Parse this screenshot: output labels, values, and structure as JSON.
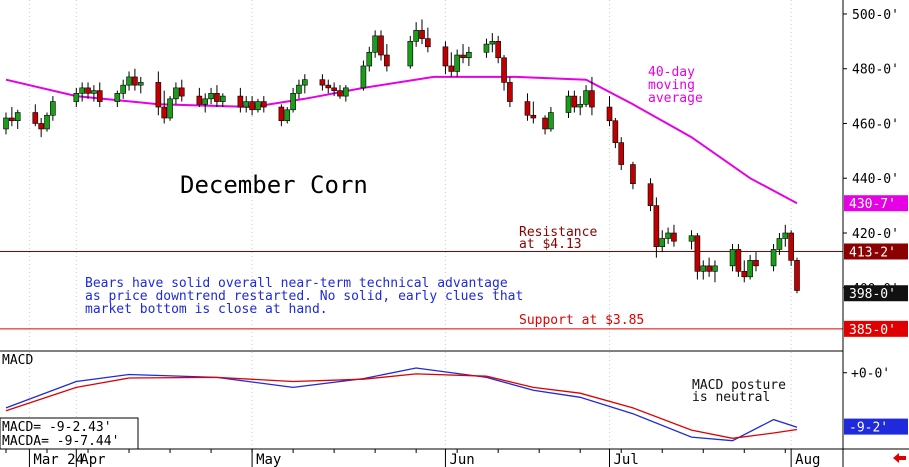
{
  "chart_data": [
    {
      "type": "candlestick",
      "title": "December Corn",
      "y_unit_format": "cents-eighths",
      "ylim": [
        378,
        504
      ],
      "x_date_range": [
        "2024-03-20",
        "2024-08-02"
      ],
      "y_ticks": [
        {
          "value": 500,
          "label": "500-0'"
        },
        {
          "value": 480,
          "label": "480-0'"
        },
        {
          "value": 460,
          "label": "460-0'"
        },
        {
          "value": 440,
          "label": "440-0'"
        },
        {
          "value": 420,
          "label": "420-0'"
        },
        {
          "value": 400,
          "label": "400-0'"
        }
      ],
      "x_ticks": [
        {
          "date": "2024-03-24",
          "label": "Mar 24"
        },
        {
          "date": "2024-04-01",
          "label": "Apr"
        },
        {
          "date": "2024-05-01",
          "label": "May"
        },
        {
          "date": "2024-06-03",
          "label": "Jun"
        },
        {
          "date": "2024-07-01",
          "label": "Jul"
        },
        {
          "date": "2024-08-01",
          "label": "Aug"
        }
      ],
      "candles_note": "open, high, low, close in cents/bushel (estimated)",
      "candles": [
        {
          "date": "2024-03-20",
          "o": 458,
          "h": 464,
          "l": 456,
          "c": 462
        },
        {
          "date": "2024-03-21",
          "o": 462,
          "h": 466,
          "l": 459,
          "c": 461
        },
        {
          "date": "2024-03-22",
          "o": 461,
          "h": 465,
          "l": 458,
          "c": 464
        },
        {
          "date": "2024-03-25",
          "o": 464,
          "h": 467,
          "l": 459,
          "c": 460
        },
        {
          "date": "2024-03-26",
          "o": 460,
          "h": 462,
          "l": 455,
          "c": 458
        },
        {
          "date": "2024-03-27",
          "o": 458,
          "h": 464,
          "l": 457,
          "c": 463
        },
        {
          "date": "2024-03-28",
          "o": 463,
          "h": 470,
          "l": 461,
          "c": 468
        },
        {
          "date": "2024-04-01",
          "o": 468,
          "h": 473,
          "l": 466,
          "c": 471
        },
        {
          "date": "2024-04-02",
          "o": 471,
          "h": 475,
          "l": 468,
          "c": 473
        },
        {
          "date": "2024-04-03",
          "o": 473,
          "h": 475,
          "l": 469,
          "c": 471
        },
        {
          "date": "2024-04-04",
          "o": 471,
          "h": 474,
          "l": 468,
          "c": 472
        },
        {
          "date": "2024-04-05",
          "o": 472,
          "h": 475,
          "l": 466,
          "c": 468
        },
        {
          "date": "2024-04-08",
          "o": 468,
          "h": 472,
          "l": 466,
          "c": 471
        },
        {
          "date": "2024-04-09",
          "o": 471,
          "h": 476,
          "l": 469,
          "c": 474
        },
        {
          "date": "2024-04-10",
          "o": 474,
          "h": 479,
          "l": 472,
          "c": 477
        },
        {
          "date": "2024-04-11",
          "o": 477,
          "h": 480,
          "l": 472,
          "c": 474
        },
        {
          "date": "2024-04-12",
          "o": 474,
          "h": 477,
          "l": 471,
          "c": 475
        },
        {
          "date": "2024-04-15",
          "o": 475,
          "h": 479,
          "l": 463,
          "c": 466
        },
        {
          "date": "2024-04-16",
          "o": 466,
          "h": 472,
          "l": 460,
          "c": 462
        },
        {
          "date": "2024-04-17",
          "o": 462,
          "h": 470,
          "l": 461,
          "c": 469
        },
        {
          "date": "2024-04-18",
          "o": 469,
          "h": 475,
          "l": 467,
          "c": 473
        },
        {
          "date": "2024-04-19",
          "o": 473,
          "h": 476,
          "l": 468,
          "c": 470
        },
        {
          "date": "2024-04-22",
          "o": 470,
          "h": 473,
          "l": 466,
          "c": 467
        },
        {
          "date": "2024-04-23",
          "o": 467,
          "h": 471,
          "l": 464,
          "c": 469
        },
        {
          "date": "2024-04-24",
          "o": 469,
          "h": 473,
          "l": 467,
          "c": 471
        },
        {
          "date": "2024-04-25",
          "o": 471,
          "h": 474,
          "l": 466,
          "c": 468
        },
        {
          "date": "2024-04-26",
          "o": 468,
          "h": 471,
          "l": 466,
          "c": 470
        },
        {
          "date": "2024-04-29",
          "o": 470,
          "h": 473,
          "l": 464,
          "c": 466
        },
        {
          "date": "2024-04-30",
          "o": 466,
          "h": 470,
          "l": 464,
          "c": 468
        },
        {
          "date": "2024-05-01",
          "o": 468,
          "h": 470,
          "l": 463,
          "c": 465
        },
        {
          "date": "2024-05-02",
          "o": 465,
          "h": 469,
          "l": 464,
          "c": 468
        },
        {
          "date": "2024-05-03",
          "o": 468,
          "h": 470,
          "l": 464,
          "c": 466
        },
        {
          "date": "2024-05-06",
          "o": 466,
          "h": 467,
          "l": 459,
          "c": 461
        },
        {
          "date": "2024-05-07",
          "o": 461,
          "h": 466,
          "l": 460,
          "c": 465
        },
        {
          "date": "2024-05-08",
          "o": 465,
          "h": 473,
          "l": 464,
          "c": 471
        },
        {
          "date": "2024-05-09",
          "o": 471,
          "h": 476,
          "l": 469,
          "c": 474
        },
        {
          "date": "2024-05-10",
          "o": 474,
          "h": 478,
          "l": 471,
          "c": 476
        },
        {
          "date": "2024-05-13",
          "o": 476,
          "h": 478,
          "l": 472,
          "c": 474
        },
        {
          "date": "2024-05-14",
          "o": 474,
          "h": 476,
          "l": 471,
          "c": 473
        },
        {
          "date": "2024-05-15",
          "o": 473,
          "h": 475,
          "l": 470,
          "c": 472
        },
        {
          "date": "2024-05-16",
          "o": 472,
          "h": 474,
          "l": 469,
          "c": 470
        },
        {
          "date": "2024-05-17",
          "o": 470,
          "h": 474,
          "l": 468,
          "c": 473
        },
        {
          "date": "2024-05-20",
          "o": 473,
          "h": 483,
          "l": 472,
          "c": 481
        },
        {
          "date": "2024-05-21",
          "o": 481,
          "h": 488,
          "l": 479,
          "c": 486
        },
        {
          "date": "2024-05-22",
          "o": 486,
          "h": 494,
          "l": 484,
          "c": 492
        },
        {
          "date": "2024-05-23",
          "o": 492,
          "h": 494,
          "l": 483,
          "c": 485
        },
        {
          "date": "2024-05-24",
          "o": 485,
          "h": 489,
          "l": 479,
          "c": 481
        },
        {
          "date": "2024-05-28",
          "o": 481,
          "h": 492,
          "l": 480,
          "c": 490
        },
        {
          "date": "2024-05-29",
          "o": 490,
          "h": 497,
          "l": 488,
          "c": 494
        },
        {
          "date": "2024-05-30",
          "o": 494,
          "h": 498,
          "l": 489,
          "c": 491
        },
        {
          "date": "2024-05-31",
          "o": 491,
          "h": 495,
          "l": 486,
          "c": 488
        },
        {
          "date": "2024-06-03",
          "o": 488,
          "h": 490,
          "l": 478,
          "c": 481
        },
        {
          "date": "2024-06-04",
          "o": 481,
          "h": 486,
          "l": 477,
          "c": 479
        },
        {
          "date": "2024-06-05",
          "o": 479,
          "h": 487,
          "l": 477,
          "c": 485
        },
        {
          "date": "2024-06-06",
          "o": 485,
          "h": 489,
          "l": 482,
          "c": 484
        },
        {
          "date": "2024-06-07",
          "o": 484,
          "h": 488,
          "l": 481,
          "c": 486
        },
        {
          "date": "2024-06-10",
          "o": 486,
          "h": 491,
          "l": 484,
          "c": 489
        },
        {
          "date": "2024-06-11",
          "o": 489,
          "h": 493,
          "l": 486,
          "c": 490
        },
        {
          "date": "2024-06-12",
          "o": 490,
          "h": 492,
          "l": 482,
          "c": 484
        },
        {
          "date": "2024-06-13",
          "o": 484,
          "h": 485,
          "l": 472,
          "c": 475
        },
        {
          "date": "2024-06-14",
          "o": 475,
          "h": 477,
          "l": 466,
          "c": 468
        },
        {
          "date": "2024-06-17",
          "o": 468,
          "h": 471,
          "l": 461,
          "c": 463
        },
        {
          "date": "2024-06-18",
          "o": 463,
          "h": 468,
          "l": 460,
          "c": 462
        },
        {
          "date": "2024-06-20",
          "o": 462,
          "h": 463,
          "l": 456,
          "c": 458
        },
        {
          "date": "2024-06-21",
          "o": 458,
          "h": 466,
          "l": 457,
          "c": 464
        },
        {
          "date": "2024-06-24",
          "o": 464,
          "h": 472,
          "l": 462,
          "c": 470
        },
        {
          "date": "2024-06-25",
          "o": 470,
          "h": 472,
          "l": 464,
          "c": 466
        },
        {
          "date": "2024-06-26",
          "o": 466,
          "h": 470,
          "l": 463,
          "c": 467
        },
        {
          "date": "2024-06-27",
          "o": 467,
          "h": 474,
          "l": 466,
          "c": 472
        },
        {
          "date": "2024-06-28",
          "o": 472,
          "h": 477,
          "l": 463,
          "c": 466
        },
        {
          "date": "2024-07-01",
          "o": 466,
          "h": 470,
          "l": 459,
          "c": 461
        },
        {
          "date": "2024-07-02",
          "o": 461,
          "h": 462,
          "l": 451,
          "c": 453
        },
        {
          "date": "2024-07-03",
          "o": 453,
          "h": 455,
          "l": 443,
          "c": 445
        },
        {
          "date": "2024-07-05",
          "o": 445,
          "h": 446,
          "l": 436,
          "c": 438
        },
        {
          "date": "2024-07-08",
          "o": 438,
          "h": 440,
          "l": 428,
          "c": 430
        },
        {
          "date": "2024-07-09",
          "o": 430,
          "h": 433,
          "l": 411,
          "c": 415
        },
        {
          "date": "2024-07-10",
          "o": 415,
          "h": 421,
          "l": 413,
          "c": 418
        },
        {
          "date": "2024-07-11",
          "o": 418,
          "h": 422,
          "l": 416,
          "c": 420
        },
        {
          "date": "2024-07-12",
          "o": 420,
          "h": 423,
          "l": 415,
          "c": 417
        },
        {
          "date": "2024-07-15",
          "o": 417,
          "h": 421,
          "l": 414,
          "c": 419
        },
        {
          "date": "2024-07-16",
          "o": 419,
          "h": 420,
          "l": 403,
          "c": 406
        },
        {
          "date": "2024-07-17",
          "o": 406,
          "h": 410,
          "l": 403,
          "c": 408
        },
        {
          "date": "2024-07-18",
          "o": 408,
          "h": 411,
          "l": 404,
          "c": 406
        },
        {
          "date": "2024-07-19",
          "o": 406,
          "h": 410,
          "l": 402,
          "c": 408
        },
        {
          "date": "2024-07-22",
          "o": 408,
          "h": 416,
          "l": 406,
          "c": 414
        },
        {
          "date": "2024-07-23",
          "o": 414,
          "h": 416,
          "l": 404,
          "c": 406
        },
        {
          "date": "2024-07-24",
          "o": 406,
          "h": 410,
          "l": 402,
          "c": 404
        },
        {
          "date": "2024-07-25",
          "o": 404,
          "h": 412,
          "l": 403,
          "c": 410
        },
        {
          "date": "2024-07-26",
          "o": 410,
          "h": 413,
          "l": 406,
          "c": 408
        },
        {
          "date": "2024-07-29",
          "o": 408,
          "h": 416,
          "l": 406,
          "c": 414
        },
        {
          "date": "2024-07-30",
          "o": 414,
          "h": 420,
          "l": 412,
          "c": 418
        },
        {
          "date": "2024-07-31",
          "o": 418,
          "h": 423,
          "l": 415,
          "c": 420
        },
        {
          "date": "2024-08-01",
          "o": 420,
          "h": 421,
          "l": 408,
          "c": 410
        },
        {
          "date": "2024-08-02",
          "o": 410,
          "h": 411,
          "l": 398,
          "c": 399
        }
      ],
      "moving_average": {
        "name": "40-day moving average",
        "color": "#e600e6",
        "points": [
          [
            "2024-03-20",
            476
          ],
          [
            "2024-04-01",
            470
          ],
          [
            "2024-04-15",
            467
          ],
          [
            "2024-05-01",
            466
          ],
          [
            "2024-05-10",
            469
          ],
          [
            "2024-05-20",
            473
          ],
          [
            "2024-06-01",
            477
          ],
          [
            "2024-06-15",
            477
          ],
          [
            "2024-06-27",
            476
          ],
          [
            "2024-07-05",
            467
          ],
          [
            "2024-07-15",
            455
          ],
          [
            "2024-07-25",
            440
          ],
          [
            "2024-08-02",
            430.9
          ]
        ]
      },
      "horizontal_lines": [
        {
          "value": 413.25,
          "color": "#8b0000",
          "label": "Resistance\nat $4.13",
          "tag": "413-2'"
        },
        {
          "value": 385,
          "color": "#e00000",
          "label": "Support at $3.85",
          "tag": "385-0'"
        }
      ],
      "price_tags": [
        {
          "value": 430.875,
          "label": "430-7'",
          "bg": "#e600e6",
          "fg": "#ffffff"
        },
        {
          "value": 413.25,
          "label": "413-2'",
          "bg": "#8b0000",
          "fg": "#ffffff"
        },
        {
          "value": 398,
          "label": "398-0'",
          "bg": "#111111",
          "fg": "#ffffff"
        },
        {
          "value": 385,
          "label": "385-0'",
          "bg": "#e00000",
          "fg": "#ffffff"
        }
      ],
      "annotations": [
        {
          "text": "40-day\nmoving\naverage",
          "color": "#e600e6"
        },
        {
          "text": "Bears have solid overall near-term technical advantage\nas price downtrend restarted. No solid, early clues that\nmarket bottom is close at hand.",
          "color": "#1e2adc"
        }
      ]
    },
    {
      "type": "line",
      "title": "MACD",
      "ylim": [
        -12,
        2
      ],
      "y_ticks": [
        {
          "value": 0,
          "label": "+0-0'"
        }
      ],
      "tag": {
        "label": "-9-2'",
        "bg": "#1e2adc",
        "fg": "#ffffff"
      },
      "series": [
        {
          "name": "MACD",
          "color": "#1e2adc",
          "readout": "MACD=   -9-2.43'",
          "points": [
            [
              "2024-03-20",
              -6
            ],
            [
              "2024-04-01",
              -1.5
            ],
            [
              "2024-04-10",
              -0.3
            ],
            [
              "2024-04-25",
              -0.8
            ],
            [
              "2024-05-08",
              -2.5
            ],
            [
              "2024-05-20",
              -1
            ],
            [
              "2024-05-29",
              0.8
            ],
            [
              "2024-06-10",
              -0.8
            ],
            [
              "2024-06-18",
              -3
            ],
            [
              "2024-06-26",
              -4.2
            ],
            [
              "2024-07-05",
              -7
            ],
            [
              "2024-07-15",
              -11
            ],
            [
              "2024-07-22",
              -11.6
            ],
            [
              "2024-07-29",
              -8
            ],
            [
              "2024-08-02",
              -9.3
            ]
          ]
        },
        {
          "name": "MACDA",
          "color": "#e00000",
          "readout": "MACDA=  -9-7.44'",
          "points": [
            [
              "2024-03-20",
              -6.5
            ],
            [
              "2024-04-01",
              -2.5
            ],
            [
              "2024-04-10",
              -0.9
            ],
            [
              "2024-04-25",
              -0.8
            ],
            [
              "2024-05-08",
              -1.5
            ],
            [
              "2024-05-20",
              -1.1
            ],
            [
              "2024-05-29",
              -0.2
            ],
            [
              "2024-06-10",
              -0.6
            ],
            [
              "2024-06-18",
              -2.5
            ],
            [
              "2024-06-26",
              -3.5
            ],
            [
              "2024-07-05",
              -6
            ],
            [
              "2024-07-15",
              -9.8
            ],
            [
              "2024-07-22",
              -11.2
            ],
            [
              "2024-07-29",
              -10.3
            ],
            [
              "2024-08-02",
              -9.7
            ]
          ]
        }
      ],
      "annotations": [
        {
          "text": "MACD posture\nis neutral",
          "color": "#111111"
        }
      ]
    }
  ],
  "footer": {
    "arrow_icon": "left-arrow-icon",
    "arrow_color": "#e00000"
  }
}
